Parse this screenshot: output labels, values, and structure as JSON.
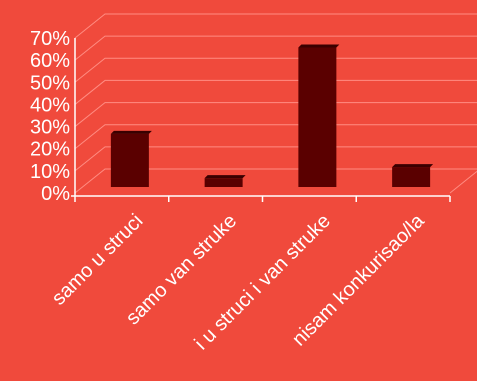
{
  "chart_data": {
    "type": "bar",
    "style": "3d",
    "categories": [
      "samo u struci",
      "samo van struke",
      "i u struci i van struke",
      "nisam konkurisao/la"
    ],
    "values": [
      24,
      4,
      63,
      9
    ],
    "title": "",
    "xlabel": "",
    "ylabel": "",
    "ylim": [
      0,
      70
    ],
    "y_ticks": [
      "0%",
      "10%",
      "20%",
      "30%",
      "40%",
      "50%",
      "60%",
      "70%"
    ],
    "grid": true,
    "legend": "none",
    "colors": {
      "background": "#f04a3c",
      "bar": "#5a0000",
      "text": "#ffffff",
      "grid": "#ff8c82"
    }
  }
}
